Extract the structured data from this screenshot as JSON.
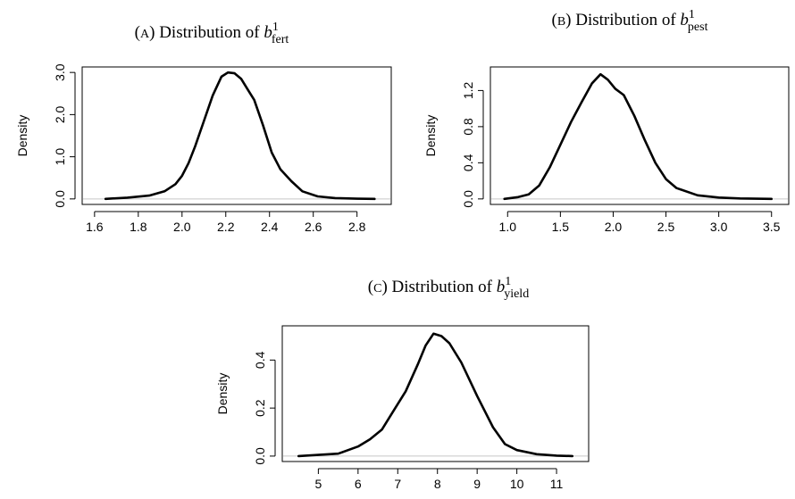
{
  "chart_data": [
    {
      "type": "line",
      "caption_prefix": "(",
      "caption_letter": "A",
      "caption_suffix": ") Distribution of ",
      "math_base": "b",
      "math_sup": "1",
      "math_sub": "fert",
      "ylabel": "Density",
      "xlim": [
        1.6,
        2.9
      ],
      "ylim": [
        0,
        3.0
      ],
      "xticks": [
        1.6,
        1.8,
        2.0,
        2.2,
        2.4,
        2.6,
        2.8
      ],
      "xtick_labels": [
        "1.6",
        "1.8",
        "2.0",
        "2.2",
        "2.4",
        "2.6",
        "2.8"
      ],
      "yticks": [
        0,
        1.0,
        2.0,
        3.0
      ],
      "ytick_labels": [
        "0.0",
        "1.0",
        "2.0",
        "3.0"
      ],
      "x": [
        1.65,
        1.75,
        1.85,
        1.92,
        1.97,
        2.0,
        2.03,
        2.06,
        2.1,
        2.14,
        2.18,
        2.21,
        2.24,
        2.27,
        2.3,
        2.33,
        2.37,
        2.41,
        2.45,
        2.5,
        2.55,
        2.62,
        2.7,
        2.8,
        2.88
      ],
      "y": [
        0.0,
        0.03,
        0.08,
        0.18,
        0.35,
        0.55,
        0.85,
        1.25,
        1.85,
        2.45,
        2.9,
        3.0,
        2.98,
        2.85,
        2.6,
        2.35,
        1.75,
        1.1,
        0.7,
        0.42,
        0.18,
        0.06,
        0.02,
        0.005,
        0.0
      ]
    },
    {
      "type": "line",
      "caption_prefix": "(",
      "caption_letter": "B",
      "caption_suffix": ") Distribution of ",
      "math_base": "b",
      "math_sup": "1",
      "math_sub": "pest",
      "ylabel": "Density",
      "xlim": [
        0.95,
        3.55
      ],
      "ylim": [
        0,
        1.4
      ],
      "xticks": [
        1.0,
        1.5,
        2.0,
        2.5,
        3.0,
        3.5
      ],
      "xtick_labels": [
        "1.0",
        "1.5",
        "2.0",
        "2.5",
        "3.0",
        "3.5"
      ],
      "yticks": [
        0,
        0.4,
        0.8,
        1.2
      ],
      "ytick_labels": [
        "0.0",
        "0.4",
        "0.8",
        "1.2"
      ],
      "x": [
        0.97,
        1.1,
        1.2,
        1.3,
        1.4,
        1.5,
        1.6,
        1.7,
        1.8,
        1.88,
        1.95,
        2.02,
        2.1,
        2.2,
        2.3,
        2.4,
        2.5,
        2.6,
        2.8,
        3.0,
        3.2,
        3.5
      ],
      "y": [
        0.0,
        0.02,
        0.05,
        0.15,
        0.35,
        0.6,
        0.85,
        1.07,
        1.28,
        1.38,
        1.32,
        1.22,
        1.15,
        0.92,
        0.65,
        0.4,
        0.22,
        0.12,
        0.04,
        0.015,
        0.005,
        0.0
      ]
    },
    {
      "type": "line",
      "caption_prefix": "(",
      "caption_letter": "C",
      "caption_suffix": ") Distribution of ",
      "math_base": "b",
      "math_sup": "1",
      "math_sub": "yield",
      "ylabel": "Density",
      "xlim": [
        4.4,
        11.5
      ],
      "ylim": [
        0,
        0.52
      ],
      "xticks": [
        5,
        6,
        7,
        8,
        9,
        10,
        11
      ],
      "xtick_labels": [
        "5",
        "6",
        "7",
        "8",
        "9",
        "10",
        "11"
      ],
      "yticks": [
        0,
        0.2,
        0.4
      ],
      "ytick_labels": [
        "0.0",
        "0.2",
        "0.4"
      ],
      "x": [
        4.5,
        5.0,
        5.5,
        6.0,
        6.3,
        6.6,
        6.9,
        7.2,
        7.5,
        7.7,
        7.9,
        8.1,
        8.3,
        8.6,
        9.0,
        9.4,
        9.7,
        10.0,
        10.5,
        11.0,
        11.4
      ],
      "y": [
        0.0,
        0.005,
        0.01,
        0.04,
        0.07,
        0.11,
        0.19,
        0.27,
        0.38,
        0.46,
        0.51,
        0.5,
        0.47,
        0.39,
        0.25,
        0.12,
        0.05,
        0.025,
        0.008,
        0.002,
        0.0
      ]
    }
  ]
}
